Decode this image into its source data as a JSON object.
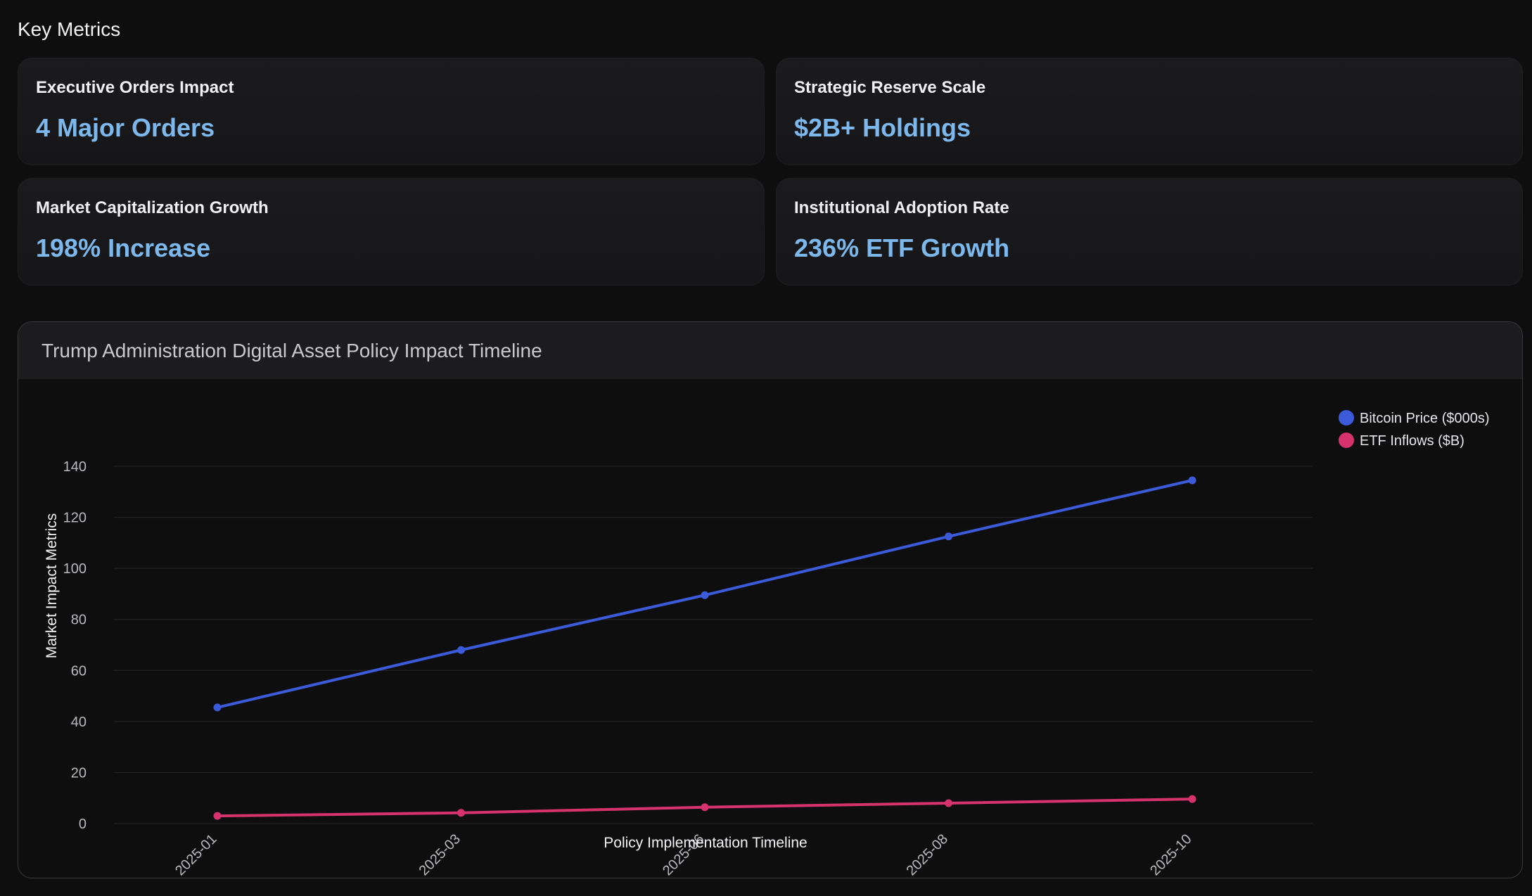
{
  "section": {
    "title": "Key Metrics"
  },
  "metrics": [
    {
      "label": "Executive Orders Impact",
      "value": "4 Major Orders"
    },
    {
      "label": "Strategic Reserve Scale",
      "value": "$2B+ Holdings"
    },
    {
      "label": "Market Capitalization Growth",
      "value": "198% Increase"
    },
    {
      "label": "Institutional Adoption Rate",
      "value": "236% ETF Growth"
    }
  ],
  "chart_data": {
    "type": "line",
    "title": "Trump Administration Digital Asset Policy Impact Timeline",
    "xlabel": "Policy Implementation Timeline",
    "ylabel": "Market Impact Metrics",
    "categories": [
      "2025-01",
      "2025-03",
      "2025-06",
      "2025-08",
      "2025-10"
    ],
    "ylim": [
      0,
      140
    ],
    "yticks": [
      0,
      20,
      40,
      60,
      80,
      100,
      120,
      140
    ],
    "grid": true,
    "legend_position": "top-right",
    "series": [
      {
        "name": "Bitcoin Price ($000s)",
        "color": "#3b5bdb",
        "values": [
          45.5,
          68,
          89.5,
          112.5,
          134.5
        ]
      },
      {
        "name": "ETF Inflows ($B)",
        "color": "#d6336c",
        "values": [
          3,
          4.2,
          6.4,
          8,
          9.6
        ]
      }
    ]
  }
}
